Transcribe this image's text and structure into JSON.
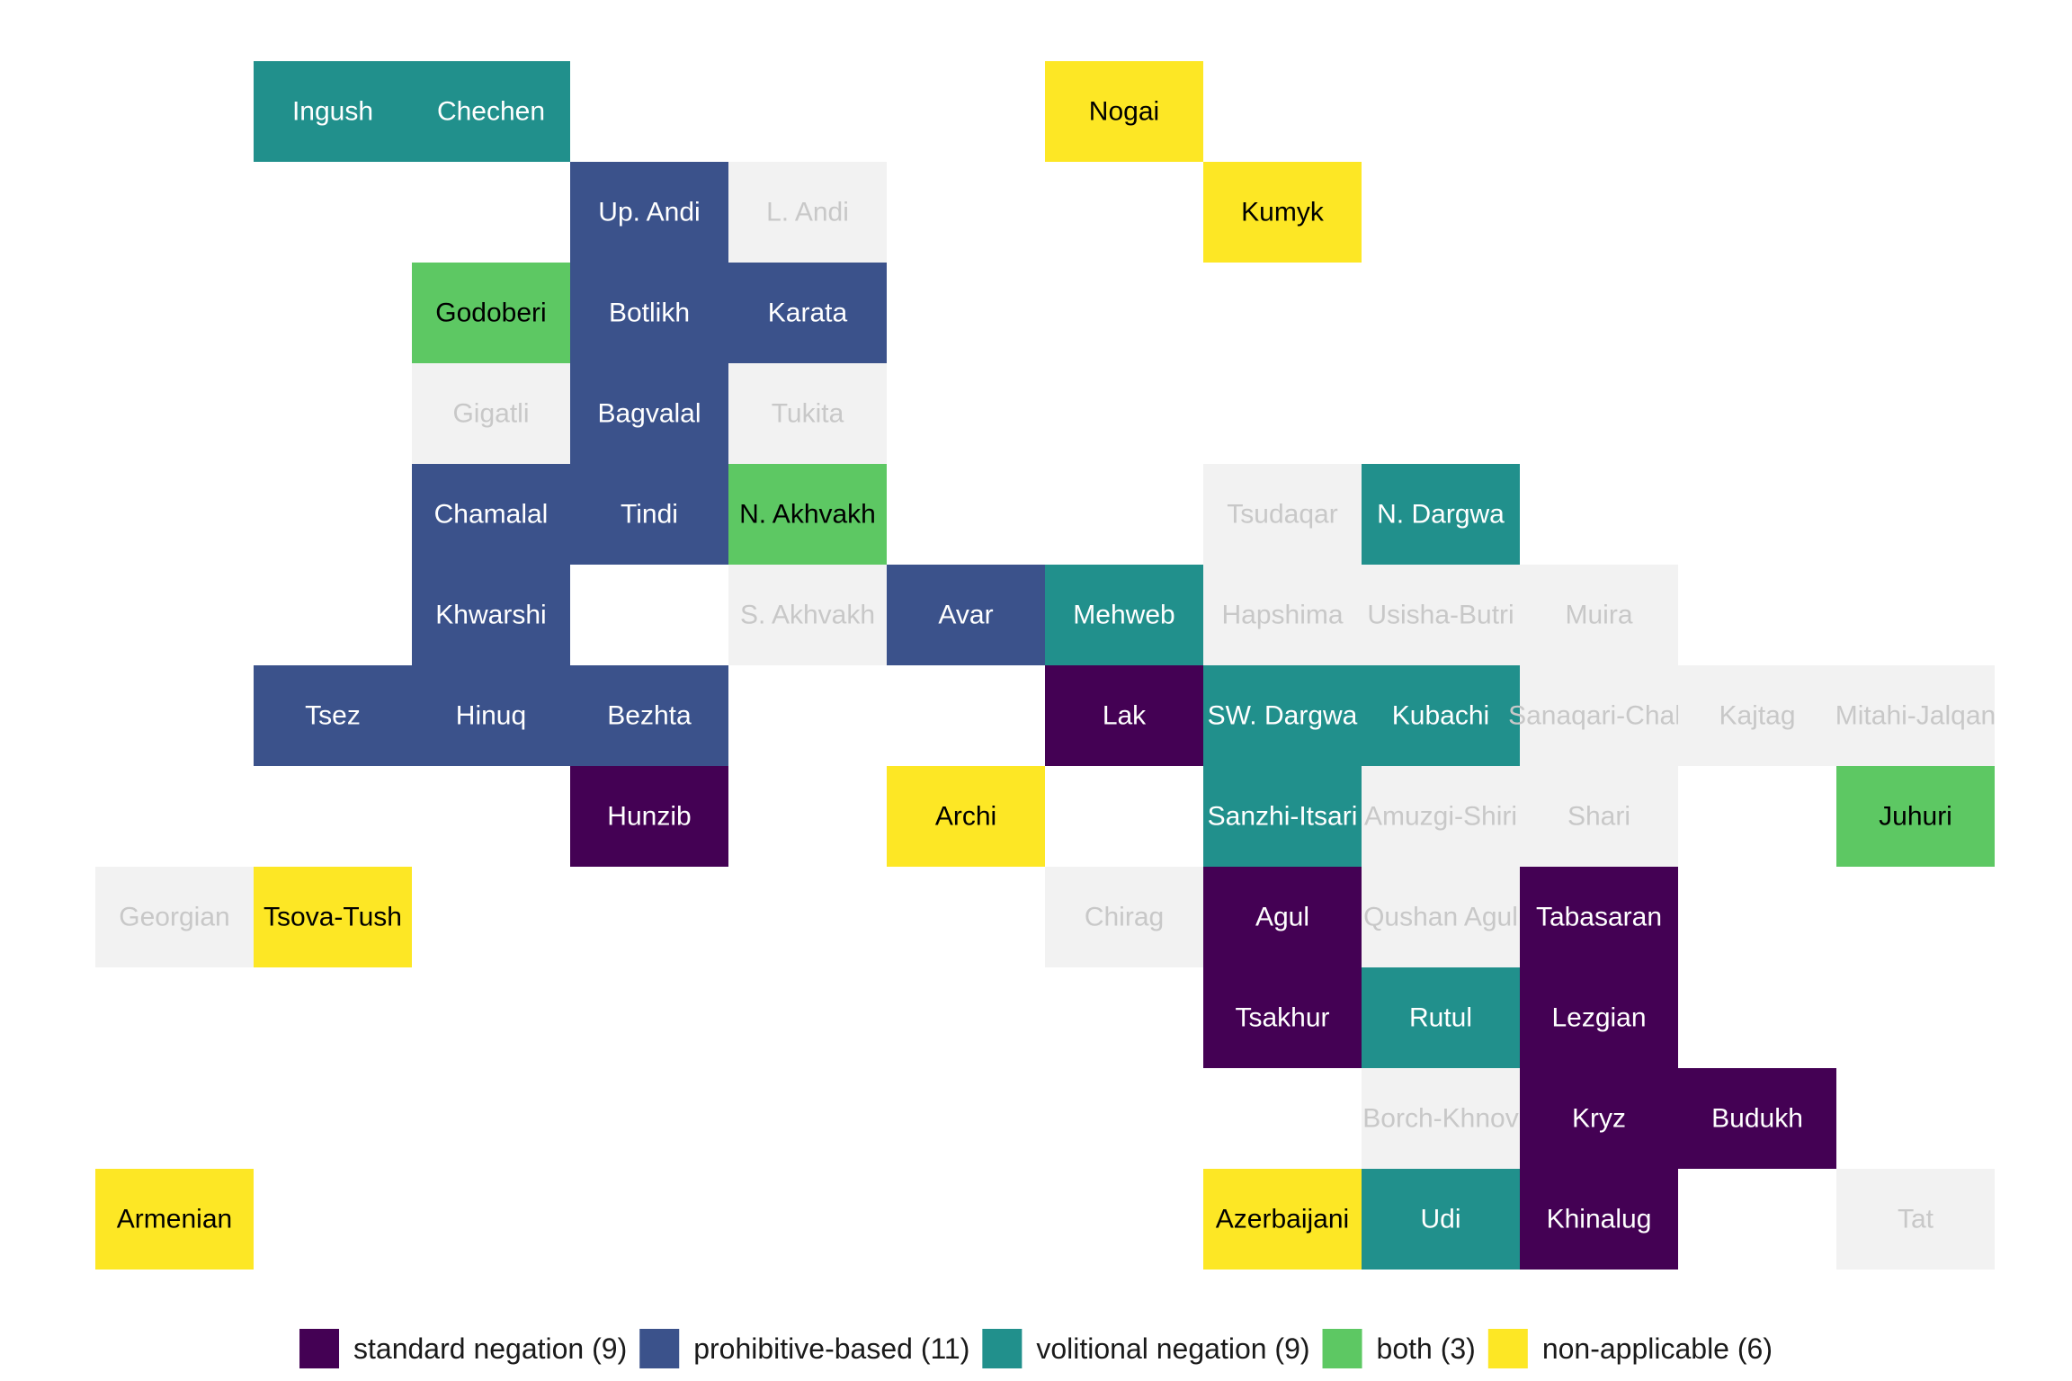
{
  "chart_data": {
    "type": "heatmap",
    "title": "",
    "xlabel": "",
    "ylabel": "",
    "grid": false,
    "legend_position": "bottom",
    "categories": [
      {
        "id": "standard",
        "label": "standard negation (9)",
        "color": "#440154",
        "text_color": "#ffffff"
      },
      {
        "id": "prohibitive",
        "label": "prohibitive-based (11)",
        "color": "#3B528B",
        "text_color": "#ffffff"
      },
      {
        "id": "volitional",
        "label": "volitional negation (9)",
        "color": "#21908C",
        "text_color": "#ffffff"
      },
      {
        "id": "both",
        "label": "both (3)",
        "color": "#5DC863",
        "text_color": "#000000"
      },
      {
        "id": "na",
        "label": "non-applicable (6)",
        "color": "#FDE725",
        "text_color": "#000000"
      },
      {
        "id": "nodata",
        "label": "",
        "color": "#F2F2F2",
        "text_color": "#C8C8C8"
      }
    ],
    "cells": [
      {
        "name": "Ingush",
        "col": 2,
        "row": 1,
        "cat": "volitional"
      },
      {
        "name": "Chechen",
        "col": 3,
        "row": 1,
        "cat": "volitional"
      },
      {
        "name": "Nogai",
        "col": 7,
        "row": 1,
        "cat": "na"
      },
      {
        "name": "Up. Andi",
        "col": 4,
        "row": 2,
        "cat": "prohibitive"
      },
      {
        "name": "L. Andi",
        "col": 5,
        "row": 2,
        "cat": "nodata"
      },
      {
        "name": "Kumyk",
        "col": 8,
        "row": 2,
        "cat": "na"
      },
      {
        "name": "Godoberi",
        "col": 3,
        "row": 3,
        "cat": "both"
      },
      {
        "name": "Botlikh",
        "col": 4,
        "row": 3,
        "cat": "prohibitive"
      },
      {
        "name": "Karata",
        "col": 5,
        "row": 3,
        "cat": "prohibitive"
      },
      {
        "name": "Gigatli",
        "col": 3,
        "row": 4,
        "cat": "nodata"
      },
      {
        "name": "Bagvalal",
        "col": 4,
        "row": 4,
        "cat": "prohibitive"
      },
      {
        "name": "Tukita",
        "col": 5,
        "row": 4,
        "cat": "nodata"
      },
      {
        "name": "Chamalal",
        "col": 3,
        "row": 5,
        "cat": "prohibitive"
      },
      {
        "name": "Tindi",
        "col": 4,
        "row": 5,
        "cat": "prohibitive"
      },
      {
        "name": "N. Akhvakh",
        "col": 5,
        "row": 5,
        "cat": "both"
      },
      {
        "name": "Tsudaqar",
        "col": 8,
        "row": 5,
        "cat": "nodata"
      },
      {
        "name": "N. Dargwa",
        "col": 9,
        "row": 5,
        "cat": "volitional"
      },
      {
        "name": "Khwarshi",
        "col": 3,
        "row": 6,
        "cat": "prohibitive"
      },
      {
        "name": "S. Akhvakh",
        "col": 5,
        "row": 6,
        "cat": "nodata"
      },
      {
        "name": "Avar",
        "col": 6,
        "row": 6,
        "cat": "prohibitive"
      },
      {
        "name": "Mehweb",
        "col": 7,
        "row": 6,
        "cat": "volitional"
      },
      {
        "name": "Hapshima",
        "col": 8,
        "row": 6,
        "cat": "nodata"
      },
      {
        "name": "Usisha-Butri",
        "col": 9,
        "row": 6,
        "cat": "nodata"
      },
      {
        "name": "Muira",
        "col": 10,
        "row": 6,
        "cat": "nodata"
      },
      {
        "name": "Tsez",
        "col": 2,
        "row": 7,
        "cat": "prohibitive"
      },
      {
        "name": "Hinuq",
        "col": 3,
        "row": 7,
        "cat": "prohibitive"
      },
      {
        "name": "Bezhta",
        "col": 4,
        "row": 7,
        "cat": "prohibitive"
      },
      {
        "name": "Lak",
        "col": 7,
        "row": 7,
        "cat": "standard"
      },
      {
        "name": "SW. Dargwa",
        "col": 8,
        "row": 7,
        "cat": "volitional"
      },
      {
        "name": "Kubachi",
        "col": 9,
        "row": 7,
        "cat": "volitional"
      },
      {
        "name": "Sanaqari-Chah",
        "col": 10,
        "row": 7,
        "cat": "nodata"
      },
      {
        "name": "Kajtag",
        "col": 11,
        "row": 7,
        "cat": "nodata"
      },
      {
        "name": "Mitahi-Jalqan",
        "col": 12,
        "row": 7,
        "cat": "nodata"
      },
      {
        "name": "Hunzib",
        "col": 4,
        "row": 8,
        "cat": "standard"
      },
      {
        "name": "Archi",
        "col": 6,
        "row": 8,
        "cat": "na"
      },
      {
        "name": "Sanzhi-Itsari",
        "col": 8,
        "row": 8,
        "cat": "volitional"
      },
      {
        "name": "Amuzgi-Shiri",
        "col": 9,
        "row": 8,
        "cat": "nodata"
      },
      {
        "name": "Shari",
        "col": 10,
        "row": 8,
        "cat": "nodata"
      },
      {
        "name": "Juhuri",
        "col": 12,
        "row": 8,
        "cat": "both"
      },
      {
        "name": "Georgian",
        "col": 1,
        "row": 9,
        "cat": "nodata"
      },
      {
        "name": "Tsova-Tush",
        "col": 2,
        "row": 9,
        "cat": "na"
      },
      {
        "name": "Chirag",
        "col": 7,
        "row": 9,
        "cat": "nodata"
      },
      {
        "name": "Agul",
        "col": 8,
        "row": 9,
        "cat": "standard"
      },
      {
        "name": "Qushan Agul",
        "col": 9,
        "row": 9,
        "cat": "nodata"
      },
      {
        "name": "Tabasaran",
        "col": 10,
        "row": 9,
        "cat": "standard"
      },
      {
        "name": "Tsakhur",
        "col": 8,
        "row": 10,
        "cat": "standard"
      },
      {
        "name": "Rutul",
        "col": 9,
        "row": 10,
        "cat": "volitional"
      },
      {
        "name": "Lezgian",
        "col": 10,
        "row": 10,
        "cat": "standard"
      },
      {
        "name": "Borch-Khnov",
        "col": 9,
        "row": 11,
        "cat": "nodata"
      },
      {
        "name": "Kryz",
        "col": 10,
        "row": 11,
        "cat": "standard"
      },
      {
        "name": "Budukh",
        "col": 11,
        "row": 11,
        "cat": "standard"
      },
      {
        "name": "Armenian",
        "col": 1,
        "row": 12,
        "cat": "na"
      },
      {
        "name": "Azerbaijani",
        "col": 8,
        "row": 12,
        "cat": "na"
      },
      {
        "name": "Udi",
        "col": 9,
        "row": 12,
        "cat": "volitional"
      },
      {
        "name": "Khinalug",
        "col": 10,
        "row": 12,
        "cat": "standard"
      },
      {
        "name": "Tat",
        "col": 12,
        "row": 12,
        "cat": "nodata"
      }
    ]
  }
}
